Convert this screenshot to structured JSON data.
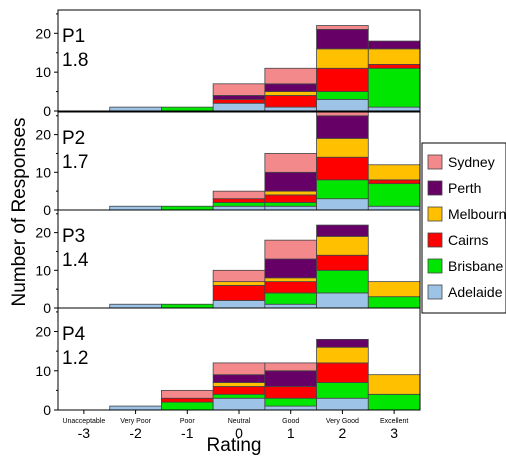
{
  "chart_data": {
    "type": "bar",
    "stacked": true,
    "xlabel": "Rating",
    "ylabel": "Number of Responses",
    "ylim": [
      0,
      26
    ],
    "yticks": [
      0,
      10,
      20
    ],
    "categories": [
      "Unacceptable",
      "Very Poor",
      "Poor",
      "Neutral",
      "Good",
      "Very Good",
      "Excellent"
    ],
    "category_values": [
      "-3",
      "-2",
      "-1",
      "0",
      "1",
      "2",
      "3"
    ],
    "legend": {
      "position": "right"
    },
    "series_order": [
      "Adelaide",
      "Brisbane",
      "Cairns",
      "Melbourne",
      "Perth",
      "Sydney"
    ],
    "colors": {
      "Adelaide": "#9dc3e6",
      "Brisbane": "#00e600",
      "Cairns": "#ff0000",
      "Melbourne": "#ffc000",
      "Perth": "#660066",
      "Sydney": "#f4898c"
    },
    "panels": [
      {
        "label": "P1",
        "value": "1.8",
        "stacks": [
          {
            "Adelaide": 0,
            "Brisbane": 0,
            "Cairns": 0,
            "Melbourne": 0,
            "Perth": 0,
            "Sydney": 0
          },
          {
            "Adelaide": 1,
            "Brisbane": 0,
            "Cairns": 0,
            "Melbourne": 0,
            "Perth": 0,
            "Sydney": 0
          },
          {
            "Adelaide": 0,
            "Brisbane": 1,
            "Cairns": 0,
            "Melbourne": 0,
            "Perth": 0,
            "Sydney": 0
          },
          {
            "Adelaide": 2,
            "Brisbane": 0,
            "Cairns": 1,
            "Melbourne": 0,
            "Perth": 1,
            "Sydney": 3
          },
          {
            "Adelaide": 1,
            "Brisbane": 0,
            "Cairns": 3,
            "Melbourne": 1,
            "Perth": 2,
            "Sydney": 4
          },
          {
            "Adelaide": 3,
            "Brisbane": 2,
            "Cairns": 6,
            "Melbourne": 5,
            "Perth": 5,
            "Sydney": 1
          },
          {
            "Adelaide": 1,
            "Brisbane": 10,
            "Cairns": 1,
            "Melbourne": 4,
            "Perth": 2,
            "Sydney": 0
          }
        ]
      },
      {
        "label": "P2",
        "value": "1.7",
        "stacks": [
          {
            "Adelaide": 0,
            "Brisbane": 0,
            "Cairns": 0,
            "Melbourne": 0,
            "Perth": 0,
            "Sydney": 0
          },
          {
            "Adelaide": 1,
            "Brisbane": 0,
            "Cairns": 0,
            "Melbourne": 0,
            "Perth": 0,
            "Sydney": 0
          },
          {
            "Adelaide": 0,
            "Brisbane": 1,
            "Cairns": 0,
            "Melbourne": 0,
            "Perth": 0,
            "Sydney": 0
          },
          {
            "Adelaide": 1,
            "Brisbane": 1,
            "Cairns": 1,
            "Melbourne": 0,
            "Perth": 0,
            "Sydney": 2
          },
          {
            "Adelaide": 1,
            "Brisbane": 1,
            "Cairns": 2,
            "Melbourne": 1,
            "Perth": 5,
            "Sydney": 5
          },
          {
            "Adelaide": 3,
            "Brisbane": 5,
            "Cairns": 6,
            "Melbourne": 5,
            "Perth": 6,
            "Sydney": 1
          },
          {
            "Adelaide": 1,
            "Brisbane": 6,
            "Cairns": 1,
            "Melbourne": 4,
            "Perth": 0,
            "Sydney": 0
          }
        ]
      },
      {
        "label": "P3",
        "value": "1.4",
        "stacks": [
          {
            "Adelaide": 0,
            "Brisbane": 0,
            "Cairns": 0,
            "Melbourne": 0,
            "Perth": 0,
            "Sydney": 0
          },
          {
            "Adelaide": 1,
            "Brisbane": 0,
            "Cairns": 0,
            "Melbourne": 0,
            "Perth": 0,
            "Sydney": 0
          },
          {
            "Adelaide": 0,
            "Brisbane": 1,
            "Cairns": 0,
            "Melbourne": 0,
            "Perth": 0,
            "Sydney": 0
          },
          {
            "Adelaide": 2,
            "Brisbane": 0,
            "Cairns": 4,
            "Melbourne": 1,
            "Perth": 0,
            "Sydney": 3
          },
          {
            "Adelaide": 1,
            "Brisbane": 3,
            "Cairns": 3,
            "Melbourne": 1,
            "Perth": 5,
            "Sydney": 5
          },
          {
            "Adelaide": 4,
            "Brisbane": 6,
            "Cairns": 4,
            "Melbourne": 5,
            "Perth": 3,
            "Sydney": 0
          },
          {
            "Adelaide": 0,
            "Brisbane": 3,
            "Cairns": 0,
            "Melbourne": 4,
            "Perth": 0,
            "Sydney": 0
          }
        ]
      },
      {
        "label": "P4",
        "value": "1.2",
        "stacks": [
          {
            "Adelaide": 0,
            "Brisbane": 0,
            "Cairns": 0,
            "Melbourne": 0,
            "Perth": 0,
            "Sydney": 0
          },
          {
            "Adelaide": 1,
            "Brisbane": 0,
            "Cairns": 0,
            "Melbourne": 0,
            "Perth": 0,
            "Sydney": 0
          },
          {
            "Adelaide": 0,
            "Brisbane": 2,
            "Cairns": 1,
            "Melbourne": 0,
            "Perth": 0,
            "Sydney": 2
          },
          {
            "Adelaide": 3,
            "Brisbane": 1,
            "Cairns": 2,
            "Melbourne": 1,
            "Perth": 2,
            "Sydney": 3
          },
          {
            "Adelaide": 1,
            "Brisbane": 2,
            "Cairns": 3,
            "Melbourne": 0,
            "Perth": 4,
            "Sydney": 2
          },
          {
            "Adelaide": 3,
            "Brisbane": 4,
            "Cairns": 5,
            "Melbourne": 4,
            "Perth": 2,
            "Sydney": 0
          },
          {
            "Adelaide": 0,
            "Brisbane": 4,
            "Cairns": 0,
            "Melbourne": 5,
            "Perth": 0,
            "Sydney": 0
          }
        ]
      }
    ]
  }
}
